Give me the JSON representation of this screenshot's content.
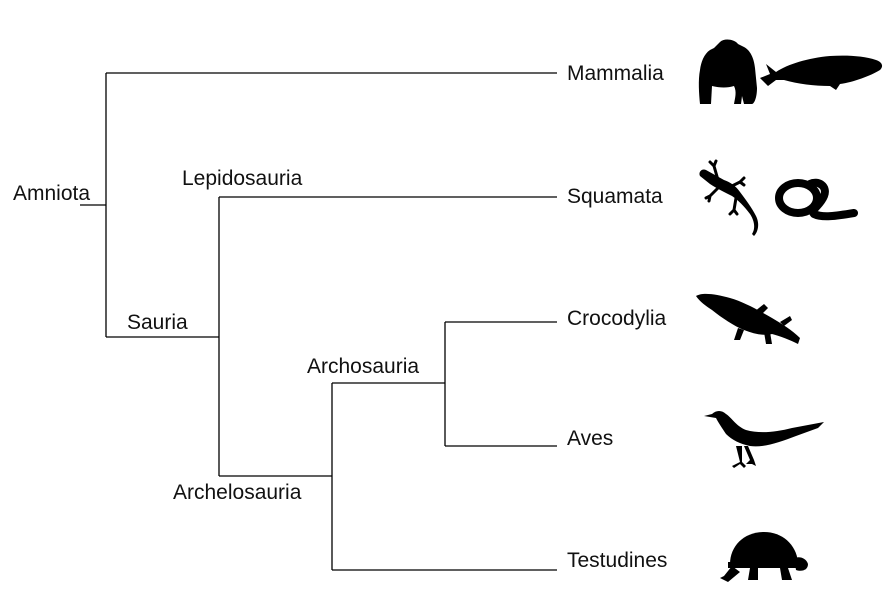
{
  "tree": {
    "root_label": "Amniota",
    "internal_labels": {
      "sauria": "Sauria",
      "lepidosauria": "Lepidosauria",
      "archelosauria": "Archelosauria",
      "archosauria": "Archosauria"
    },
    "leaves": [
      {
        "name": "Mammalia",
        "icons": [
          "gorilla-icon",
          "whale-icon"
        ]
      },
      {
        "name": "Squamata",
        "icons": [
          "lizard-icon",
          "snake-icon"
        ]
      },
      {
        "name": "Crocodylia",
        "icons": [
          "crocodile-icon"
        ]
      },
      {
        "name": "Aves",
        "icons": [
          "bird-icon"
        ]
      },
      {
        "name": "Testudines",
        "icons": [
          "turtle-icon"
        ]
      }
    ],
    "colors": {
      "lines": "#000000",
      "silhouettes": "#000000",
      "text": "#111111"
    }
  }
}
